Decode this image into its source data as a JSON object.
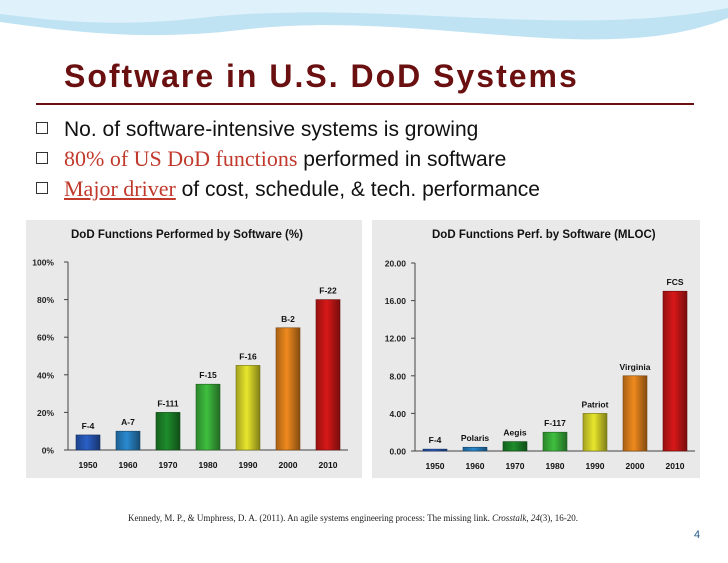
{
  "slide": {
    "title": "Software in U.S. DoD Systems",
    "bullets": [
      {
        "plain": "No. of software-intensive systems is growing"
      },
      {
        "highlight": "80% of US DoD functions",
        "rest": " performed in software"
      },
      {
        "highlight": "Major driver",
        "rest": " of cost, schedule, & tech. performance"
      }
    ],
    "citation_pre": "Kennedy, M. P., & Umphress, D. A. (2011). An agile systems engineering process: The missing link. ",
    "citation_journal": "Crosstalk, 24",
    "citation_post": "(3), 16-20.",
    "page_number": "4"
  },
  "colors": {
    "title": "#6b1010",
    "highlight": "#c0392b",
    "header_wave": "#bfe3f3",
    "page_number": "#1f5a8a"
  },
  "chart_data": [
    {
      "type": "bar",
      "title": "DoD Functions Performed by Software (%)",
      "categories": [
        "1950",
        "1960",
        "1970",
        "1980",
        "1990",
        "2000",
        "2010"
      ],
      "values": [
        8,
        10,
        20,
        35,
        45,
        65,
        80
      ],
      "bar_labels": [
        "F-4",
        "A-7",
        "F-111",
        "F-15",
        "F-16",
        "B-2",
        "F-22"
      ],
      "ylim": [
        0,
        100
      ],
      "y_ticks": [
        0,
        20,
        40,
        60,
        80,
        100
      ],
      "y_tick_labels": [
        "0%",
        "20%",
        "40%",
        "60%",
        "80%",
        "100%"
      ],
      "bar_colors": [
        "#2a5fc6",
        "#2a8ad0",
        "#1e8c2c",
        "#3fbf3f",
        "#e8e62c",
        "#f08a1e",
        "#d81818"
      ],
      "grid": false
    },
    {
      "type": "bar",
      "title": "DoD Functions Perf. by Software (MLOC)",
      "categories": [
        "1950",
        "1960",
        "1970",
        "1980",
        "1990",
        "2000",
        "2010"
      ],
      "values": [
        0.2,
        0.4,
        1.0,
        2.0,
        4.0,
        8.0,
        17.0
      ],
      "bar_labels": [
        "F-4",
        "Polaris",
        "Aegis",
        "F-117",
        "Patriot",
        "Virginia",
        "FCS"
      ],
      "ylim": [
        0,
        20
      ],
      "y_ticks": [
        0,
        4,
        8,
        12,
        16,
        20
      ],
      "y_tick_labels": [
        "0.00",
        "4.00",
        "8.00",
        "12.00",
        "16.00",
        "20.00"
      ],
      "bar_colors": [
        "#2a5fc6",
        "#2a8ad0",
        "#1e8c2c",
        "#3fbf3f",
        "#e8e62c",
        "#f08a1e",
        "#d81818"
      ],
      "grid": false
    }
  ]
}
